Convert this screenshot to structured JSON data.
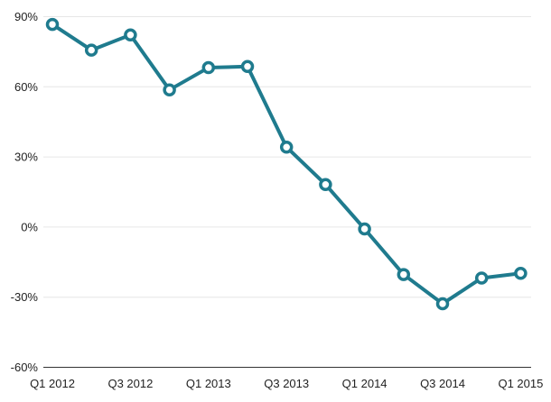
{
  "chart_data": {
    "type": "line",
    "title": "",
    "xlabel": "",
    "ylabel": "",
    "x": [
      "Q1 2012",
      "Q2 2012",
      "Q3 2012",
      "Q4 2012",
      "Q1 2013",
      "Q2 2013",
      "Q3 2013",
      "Q4 2013",
      "Q1 2014",
      "Q2 2014",
      "Q3 2014",
      "Q4 2014",
      "Q1 2015"
    ],
    "x_tick_labels": [
      "Q1 2012",
      "Q3 2012",
      "Q1 2013",
      "Q3 2013",
      "Q1 2014",
      "Q3 2014",
      "Q1 2015"
    ],
    "ylim": [
      -60,
      90
    ],
    "y_ticks": [
      -60,
      -30,
      0,
      30,
      60,
      90
    ],
    "y_tick_labels": [
      "-60%",
      "-30%",
      "0%",
      "30%",
      "60%",
      "90%"
    ],
    "y_unit": "%",
    "grid": "horizontal",
    "series": [
      {
        "values": [
          86.5,
          75.5,
          82,
          58.5,
          68,
          68.5,
          34,
          18,
          -1,
          -20.5,
          -33,
          -22,
          -20
        ],
        "color": "#1f7b8e"
      }
    ]
  }
}
